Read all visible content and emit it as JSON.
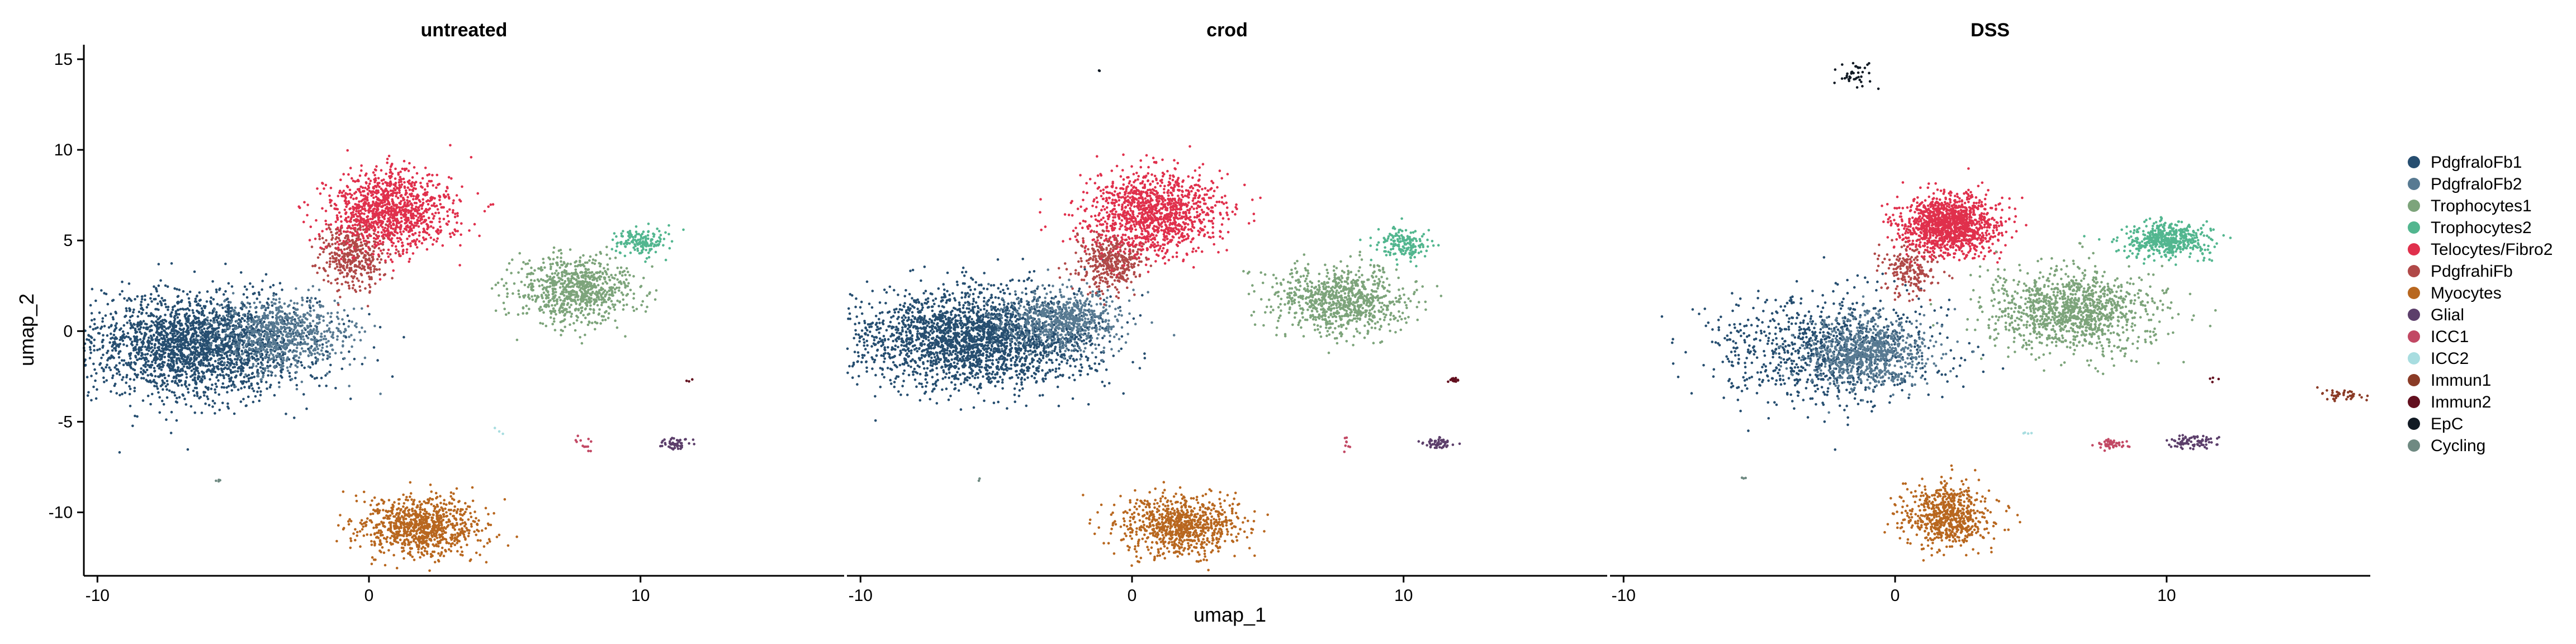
{
  "chart_data": {
    "type": "scatter",
    "xlabel": "umap_1",
    "ylabel": "umap_2",
    "xlim": [
      -10.5,
      17.5
    ],
    "ylim": [
      -13.5,
      15.8
    ],
    "x_ticks": [
      -10,
      0,
      10
    ],
    "y_ticks": [
      15,
      10,
      5,
      0,
      -5,
      -10
    ],
    "grid": false,
    "legend_position": "right",
    "panels": [
      "untreated",
      "crod",
      "DSS"
    ],
    "legend": [
      {
        "name": "PdgfraloFb1",
        "color": "#264e70"
      },
      {
        "name": "PdgfraloFb2",
        "color": "#587a92"
      },
      {
        "name": "Trophocytes1",
        "color": "#7da47b"
      },
      {
        "name": "Trophocytes2",
        "color": "#52b68f"
      },
      {
        "name": "Telocytes/Fibro2",
        "color": "#e0304c"
      },
      {
        "name": "PdgfrahiFb",
        "color": "#b04948"
      },
      {
        "name": "Myocytes",
        "color": "#b8671f"
      },
      {
        "name": "Glial",
        "color": "#5c3f6b"
      },
      {
        "name": "ICC1",
        "color": "#c24864"
      },
      {
        "name": "ICC2",
        "color": "#a8dde0"
      },
      {
        "name": "Immun1",
        "color": "#8a3b26"
      },
      {
        "name": "Immun2",
        "color": "#620f1e"
      },
      {
        "name": "EpC",
        "color": "#111a24"
      },
      {
        "name": "Cycling",
        "color": "#6f8a82"
      }
    ],
    "clusters": {
      "untreated": [
        {
          "type": "PdgfraloFb1",
          "cx": -6.5,
          "cy": -0.8,
          "sx": 2.1,
          "sy": 1.4,
          "n": 2400
        },
        {
          "type": "PdgfraloFb2",
          "cx": -3.2,
          "cy": -0.2,
          "sx": 1.2,
          "sy": 1.0,
          "n": 700
        },
        {
          "type": "PdgfrahiFb",
          "cx": -0.6,
          "cy": 4.2,
          "sx": 0.6,
          "sy": 0.9,
          "n": 400
        },
        {
          "type": "Telocytes/Fibro2",
          "cx": 0.8,
          "cy": 6.7,
          "sx": 1.1,
          "sy": 1.1,
          "n": 1100
        },
        {
          "type": "Trophocytes1",
          "cx": 7.6,
          "cy": 2.2,
          "sx": 1.1,
          "sy": 0.9,
          "n": 800
        },
        {
          "type": "Trophocytes2",
          "cx": 10.0,
          "cy": 4.9,
          "sx": 0.5,
          "sy": 0.4,
          "n": 150
        },
        {
          "type": "Myocytes",
          "cx": 1.9,
          "cy": -10.8,
          "sx": 1.1,
          "sy": 0.8,
          "n": 900
        },
        {
          "type": "Glial",
          "cx": 11.3,
          "cy": -6.2,
          "sx": 0.3,
          "sy": 0.2,
          "n": 50
        },
        {
          "type": "ICC1",
          "cx": 7.9,
          "cy": -6.2,
          "sx": 0.15,
          "sy": 0.2,
          "n": 12
        },
        {
          "type": "ICC2",
          "cx": 4.8,
          "cy": -5.5,
          "sx": 0.1,
          "sy": 0.1,
          "n": 3
        },
        {
          "type": "Immun2",
          "cx": 11.8,
          "cy": -2.7,
          "sx": 0.1,
          "sy": 0.1,
          "n": 3
        },
        {
          "type": "Cycling",
          "cx": -5.5,
          "cy": -8.3,
          "sx": 0.1,
          "sy": 0.1,
          "n": 4
        }
      ],
      "crod": [
        {
          "type": "PdgfraloFb1",
          "cx": -5.8,
          "cy": -0.4,
          "sx": 2.1,
          "sy": 1.3,
          "n": 2500
        },
        {
          "type": "PdgfraloFb2",
          "cx": -2.6,
          "cy": 0.6,
          "sx": 1.1,
          "sy": 0.8,
          "n": 650
        },
        {
          "type": "PdgfrahiFb",
          "cx": -0.8,
          "cy": 3.8,
          "sx": 0.6,
          "sy": 0.8,
          "n": 400
        },
        {
          "type": "Telocytes/Fibro2",
          "cx": 0.8,
          "cy": 6.5,
          "sx": 1.2,
          "sy": 1.1,
          "n": 1200
        },
        {
          "type": "Trophocytes1",
          "cx": 7.7,
          "cy": 1.7,
          "sx": 1.2,
          "sy": 0.9,
          "n": 850
        },
        {
          "type": "Trophocytes2",
          "cx": 10.0,
          "cy": 4.8,
          "sx": 0.5,
          "sy": 0.4,
          "n": 160
        },
        {
          "type": "Myocytes",
          "cx": 1.8,
          "cy": -10.7,
          "sx": 1.1,
          "sy": 0.8,
          "n": 850
        },
        {
          "type": "Glial",
          "cx": 11.3,
          "cy": -6.2,
          "sx": 0.3,
          "sy": 0.2,
          "n": 50
        },
        {
          "type": "ICC1",
          "cx": 7.9,
          "cy": -6.2,
          "sx": 0.1,
          "sy": 0.2,
          "n": 8
        },
        {
          "type": "Immun2",
          "cx": 11.9,
          "cy": -2.7,
          "sx": 0.15,
          "sy": 0.1,
          "n": 15
        },
        {
          "type": "EpC",
          "cx": -1.2,
          "cy": 14.4,
          "sx": 0.05,
          "sy": 0.05,
          "n": 2
        },
        {
          "type": "Cycling",
          "cx": -5.6,
          "cy": -8.2,
          "sx": 0.1,
          "sy": 0.1,
          "n": 2
        }
      ],
      "DSS": [
        {
          "type": "PdgfraloFb1",
          "cx": -2.5,
          "cy": -1.0,
          "sx": 2.0,
          "sy": 1.5,
          "n": 900
        },
        {
          "type": "PdgfraloFb2",
          "cx": -1.0,
          "cy": -1.2,
          "sx": 1.1,
          "sy": 1.0,
          "n": 800
        },
        {
          "type": "PdgfrahiFb",
          "cx": 0.6,
          "cy": 3.4,
          "sx": 0.5,
          "sy": 0.7,
          "n": 200
        },
        {
          "type": "Telocytes/Fibro2",
          "cx": 2.0,
          "cy": 5.9,
          "sx": 0.9,
          "sy": 0.8,
          "n": 1300
        },
        {
          "type": "Trophocytes1",
          "cx": 6.6,
          "cy": 1.1,
          "sx": 1.5,
          "sy": 1.1,
          "n": 1200
        },
        {
          "type": "Trophocytes2",
          "cx": 10.0,
          "cy": 5.0,
          "sx": 0.8,
          "sy": 0.5,
          "n": 500
        },
        {
          "type": "Myocytes",
          "cx": 1.9,
          "cy": -10.2,
          "sx": 0.8,
          "sy": 0.9,
          "n": 650
        },
        {
          "type": "Glial",
          "cx": 10.9,
          "cy": -6.1,
          "sx": 0.5,
          "sy": 0.2,
          "n": 80
        },
        {
          "type": "ICC1",
          "cx": 7.9,
          "cy": -6.2,
          "sx": 0.25,
          "sy": 0.15,
          "n": 50
        },
        {
          "type": "ICC2",
          "cx": 4.8,
          "cy": -5.6,
          "sx": 0.1,
          "sy": 0.1,
          "n": 4
        },
        {
          "type": "Immun1",
          "cx": 16.4,
          "cy": -3.5,
          "sx": 0.4,
          "sy": 0.15,
          "n": 40
        },
        {
          "type": "Immun2",
          "cx": 11.8,
          "cy": -2.6,
          "sx": 0.1,
          "sy": 0.1,
          "n": 4
        },
        {
          "type": "EpC",
          "cx": -1.5,
          "cy": 14.2,
          "sx": 0.3,
          "sy": 0.35,
          "n": 40
        },
        {
          "type": "Cycling",
          "cx": -5.6,
          "cy": -8.2,
          "sx": 0.1,
          "sy": 0.1,
          "n": 3
        }
      ]
    }
  }
}
